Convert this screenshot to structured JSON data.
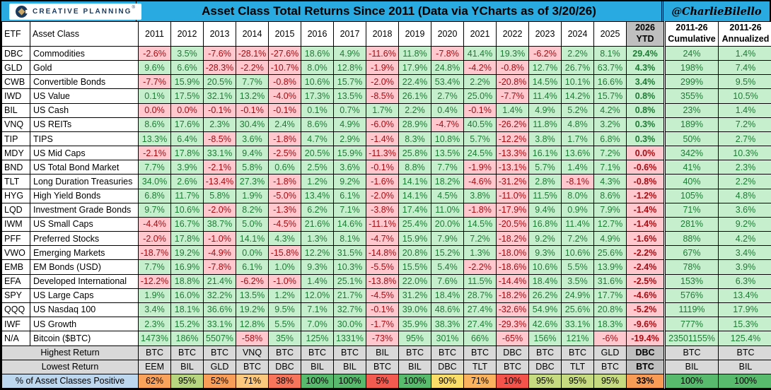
{
  "topbar": {
    "logo_text": "CREATIVE PLANNING",
    "logo_registered": "®",
    "handle": "@CharlieBilello"
  },
  "colors": {
    "topbar_cyan": "#29ABE2",
    "positive_bg": "#C6EFCE",
    "positive_text": "#1E7B34",
    "negative_bg": "#FFC7CE",
    "negative_text": "#A50D12",
    "footer_gray": "#D9D9D9",
    "ytd_gray": "#BFBFBF",
    "pct_label_blue": "#BDD7EE",
    "logo_navy": "#1B3A5C",
    "logo_gold": "#C9A769"
  },
  "chart_data": {
    "type": "table",
    "title": "Asset Class Total Returns Since 2011 (Data via YCharts as of 3/20/26)",
    "col_headers": {
      "etf": "ETF",
      "asset_class": "Asset Class",
      "years": [
        "2011",
        "2012",
        "2013",
        "2014",
        "2015",
        "2016",
        "2017",
        "2018",
        "2019",
        "2020",
        "2021",
        "2022",
        "2023",
        "2024",
        "2025"
      ],
      "ytd": {
        "line1": "2026",
        "line2": "YTD"
      },
      "cumulative": {
        "line1": "2011-26",
        "line2": "Cumulative"
      },
      "annualized": {
        "line1": "2011-26",
        "line2": "Annualized"
      }
    },
    "rows": [
      {
        "etf": "DBC",
        "name": "Commodities",
        "values": [
          "-2.6%",
          "3.5%",
          "-7.6%",
          "-28.1%",
          "-27.6%",
          "18.6%",
          "4.9%",
          "-11.6%",
          "11.8%",
          "-7.8%",
          "41.4%",
          "19.3%",
          "-6.2%",
          "2.2%",
          "8.1%",
          "29.4%",
          "24%",
          "1.4%"
        ]
      },
      {
        "etf": "GLD",
        "name": "Gold",
        "values": [
          "9.6%",
          "6.6%",
          "-28.3%",
          "-2.2%",
          "-10.7%",
          "8.0%",
          "12.8%",
          "-1.9%",
          "17.9%",
          "24.8%",
          "-4.2%",
          "-0.8%",
          "12.7%",
          "26.7%",
          "63.7%",
          "4.3%",
          "198%",
          "7.4%"
        ]
      },
      {
        "etf": "CWB",
        "name": "Convertible Bonds",
        "values": [
          "-7.7%",
          "15.9%",
          "20.5%",
          "7.7%",
          "-0.8%",
          "10.6%",
          "15.7%",
          "-2.0%",
          "22.4%",
          "53.4%",
          "2.2%",
          "-20.8%",
          "14.5%",
          "10.1%",
          "16.6%",
          "3.4%",
          "299%",
          "9.5%"
        ]
      },
      {
        "etf": "IWD",
        "name": "US Value",
        "values": [
          "0.1%",
          "17.5%",
          "32.1%",
          "13.2%",
          "-4.0%",
          "17.3%",
          "13.5%",
          "-8.5%",
          "26.1%",
          "2.7%",
          "25.0%",
          "-7.7%",
          "11.4%",
          "14.2%",
          "15.7%",
          "0.8%",
          "355%",
          "10.5%"
        ]
      },
      {
        "etf": "BIL",
        "name": "US Cash",
        "values": [
          "0.0%",
          "0.0%",
          "-0.1%",
          "-0.1%",
          "-0.1%",
          "0.1%",
          "0.7%",
          "1.7%",
          "2.2%",
          "0.4%",
          "-0.1%",
          "1.4%",
          "4.9%",
          "5.2%",
          "4.2%",
          "0.8%",
          "23%",
          "1.4%"
        ]
      },
      {
        "etf": "VNQ",
        "name": "US REITs",
        "values": [
          "8.6%",
          "17.6%",
          "2.3%",
          "30.4%",
          "2.4%",
          "8.6%",
          "4.9%",
          "-6.0%",
          "28.9%",
          "-4.7%",
          "40.5%",
          "-26.2%",
          "11.8%",
          "4.8%",
          "3.2%",
          "0.3%",
          "189%",
          "7.2%"
        ]
      },
      {
        "etf": "TIP",
        "name": "TIPS",
        "values": [
          "13.3%",
          "6.4%",
          "-8.5%",
          "3.6%",
          "-1.8%",
          "4.7%",
          "2.9%",
          "-1.4%",
          "8.3%",
          "10.8%",
          "5.7%",
          "-12.2%",
          "3.8%",
          "1.7%",
          "6.8%",
          "0.3%",
          "50%",
          "2.7%"
        ]
      },
      {
        "etf": "MDY",
        "name": "US Mid Caps",
        "values": [
          "-2.1%",
          "17.8%",
          "33.1%",
          "9.4%",
          "-2.5%",
          "20.5%",
          "15.9%",
          "-11.3%",
          "25.8%",
          "13.5%",
          "24.5%",
          "-13.3%",
          "16.1%",
          "13.6%",
          "7.2%",
          "0.0%",
          "342%",
          "10.3%"
        ]
      },
      {
        "etf": "BND",
        "name": "US Total Bond Market",
        "values": [
          "7.7%",
          "3.9%",
          "-2.1%",
          "5.8%",
          "0.6%",
          "2.5%",
          "3.6%",
          "-0.1%",
          "8.8%",
          "7.7%",
          "-1.9%",
          "-13.1%",
          "5.7%",
          "1.4%",
          "7.1%",
          "-0.6%",
          "41%",
          "2.3%"
        ]
      },
      {
        "etf": "TLT",
        "name": "Long Duration Treasuries",
        "values": [
          "34.0%",
          "2.6%",
          "-13.4%",
          "27.3%",
          "-1.8%",
          "1.2%",
          "9.2%",
          "-1.6%",
          "14.1%",
          "18.2%",
          "-4.6%",
          "-31.2%",
          "2.8%",
          "-8.1%",
          "4.3%",
          "-0.8%",
          "40%",
          "2.2%"
        ]
      },
      {
        "etf": "HYG",
        "name": "High Yield Bonds",
        "values": [
          "6.8%",
          "11.7%",
          "5.8%",
          "1.9%",
          "-5.0%",
          "13.4%",
          "6.1%",
          "-2.0%",
          "14.1%",
          "4.5%",
          "3.8%",
          "-11.0%",
          "11.5%",
          "8.0%",
          "8.6%",
          "-1.2%",
          "105%",
          "4.8%"
        ]
      },
      {
        "etf": "LQD",
        "name": "Investment Grade Bonds",
        "values": [
          "9.7%",
          "10.6%",
          "-2.0%",
          "8.2%",
          "-1.3%",
          "6.2%",
          "7.1%",
          "-3.8%",
          "17.4%",
          "11.0%",
          "-1.8%",
          "-17.9%",
          "9.4%",
          "0.9%",
          "7.9%",
          "-1.4%",
          "71%",
          "3.6%"
        ]
      },
      {
        "etf": "IWM",
        "name": "US Small Caps",
        "values": [
          "-4.4%",
          "16.7%",
          "38.7%",
          "5.0%",
          "-4.5%",
          "21.6%",
          "14.6%",
          "-11.1%",
          "25.4%",
          "20.0%",
          "14.5%",
          "-20.5%",
          "16.8%",
          "11.4%",
          "12.7%",
          "-1.4%",
          "281%",
          "9.2%"
        ]
      },
      {
        "etf": "PFF",
        "name": "Preferred Stocks",
        "values": [
          "-2.0%",
          "17.8%",
          "-1.0%",
          "14.1%",
          "4.3%",
          "1.3%",
          "8.1%",
          "-4.7%",
          "15.9%",
          "7.9%",
          "7.2%",
          "-18.2%",
          "9.2%",
          "7.2%",
          "4.9%",
          "-1.6%",
          "88%",
          "4.2%"
        ]
      },
      {
        "etf": "VWO",
        "name": "Emerging Markets",
        "values": [
          "-18.7%",
          "19.2%",
          "-4.9%",
          "0.0%",
          "-15.8%",
          "12.2%",
          "31.5%",
          "-14.8%",
          "20.8%",
          "15.2%",
          "1.3%",
          "-18.0%",
          "9.3%",
          "10.6%",
          "25.6%",
          "-2.2%",
          "67%",
          "3.4%"
        ]
      },
      {
        "etf": "EMB",
        "name": "EM Bonds (USD)",
        "values": [
          "7.7%",
          "16.9%",
          "-7.8%",
          "6.1%",
          "1.0%",
          "9.3%",
          "10.3%",
          "-5.5%",
          "15.5%",
          "5.4%",
          "-2.2%",
          "-18.6%",
          "10.6%",
          "5.5%",
          "13.9%",
          "-2.4%",
          "78%",
          "3.9%"
        ]
      },
      {
        "etf": "EFA",
        "name": "Developed International",
        "values": [
          "-12.2%",
          "18.8%",
          "21.4%",
          "-6.2%",
          "-1.0%",
          "1.4%",
          "25.1%",
          "-13.8%",
          "22.0%",
          "7.6%",
          "11.5%",
          "-14.4%",
          "18.4%",
          "3.5%",
          "31.6%",
          "-2.5%",
          "153%",
          "6.3%"
        ]
      },
      {
        "etf": "SPY",
        "name": "US Large Caps",
        "values": [
          "1.9%",
          "16.0%",
          "32.2%",
          "13.5%",
          "1.2%",
          "12.0%",
          "21.7%",
          "-4.5%",
          "31.2%",
          "18.4%",
          "28.7%",
          "-18.2%",
          "26.2%",
          "24.9%",
          "17.7%",
          "-4.6%",
          "576%",
          "13.4%"
        ]
      },
      {
        "etf": "QQQ",
        "name": "US Nasdaq 100",
        "values": [
          "3.4%",
          "18.1%",
          "36.6%",
          "19.2%",
          "9.5%",
          "7.1%",
          "32.7%",
          "-0.1%",
          "39.0%",
          "48.6%",
          "27.4%",
          "-32.6%",
          "54.9%",
          "25.6%",
          "20.8%",
          "-5.2%",
          "1119%",
          "17.9%"
        ]
      },
      {
        "etf": "IWF",
        "name": "US Growth",
        "values": [
          "2.3%",
          "15.2%",
          "33.1%",
          "12.8%",
          "5.5%",
          "7.0%",
          "30.0%",
          "-1.7%",
          "35.9%",
          "38.3%",
          "27.4%",
          "-29.3%",
          "42.6%",
          "33.1%",
          "18.3%",
          "-9.6%",
          "777%",
          "15.3%"
        ]
      },
      {
        "etf": "N/A",
        "name": "Bitcoin ($BTC)",
        "values": [
          "1473%",
          "186%",
          "5507%",
          "-58%",
          "35%",
          "125%",
          "1331%",
          "-73%",
          "95%",
          "301%",
          "66%",
          "-65%",
          "156%",
          "121%",
          "-6%",
          "-19.4%",
          "23501155%",
          "125.4%"
        ]
      }
    ],
    "red_zero_overrides": {
      "BIL": [
        0,
        1
      ],
      "MDY": [
        15
      ]
    },
    "footer": {
      "highest_label": "Highest Return",
      "lowest_label": "Lowest Return",
      "pct_label": "% of Asset Classes Positive",
      "highest": [
        "BTC",
        "BTC",
        "BTC",
        "VNQ",
        "BTC",
        "BTC",
        "BTC",
        "BIL",
        "BTC",
        "BTC",
        "BTC",
        "DBC",
        "BTC",
        "BTC",
        "GLD",
        "DBC",
        "BTC",
        "BTC"
      ],
      "lowest": [
        "EEM",
        "BIL",
        "GLD",
        "BTC",
        "DBC",
        "BIL",
        "BIL",
        "BTC",
        "BIL",
        "DBC",
        "TLT",
        "BTC",
        "DBC",
        "TLT",
        "BTC",
        "BTC",
        "BIL",
        "BIL"
      ],
      "pct": [
        {
          "value": "62%",
          "color": "#F9A25C"
        },
        {
          "value": "95%",
          "color": "#B6D57E"
        },
        {
          "value": "52%",
          "color": "#F99E58"
        },
        {
          "value": "71%",
          "color": "#FBC87D"
        },
        {
          "value": "38%",
          "color": "#F7765B"
        },
        {
          "value": "100%",
          "color": "#57BA6C"
        },
        {
          "value": "100%",
          "color": "#57BA6C"
        },
        {
          "value": "5%",
          "color": "#F45B50"
        },
        {
          "value": "100%",
          "color": "#57BA6C"
        },
        {
          "value": "90%",
          "color": "#FADD68"
        },
        {
          "value": "71%",
          "color": "#FAB25E"
        },
        {
          "value": "10%",
          "color": "#F4534C"
        },
        {
          "value": "95%",
          "color": "#C6DB7F"
        },
        {
          "value": "95%",
          "color": "#C6DB7F"
        },
        {
          "value": "95%",
          "color": "#C6DB7F"
        },
        {
          "value": "33%",
          "color": "#F89B55"
        },
        {
          "value": "100%",
          "color": "#57BA6C"
        },
        {
          "value": "100%",
          "color": "#57BA6C"
        }
      ]
    }
  }
}
